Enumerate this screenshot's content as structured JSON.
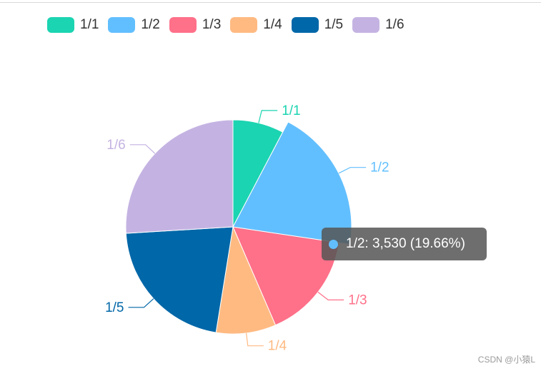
{
  "chart_data": {
    "type": "pie",
    "categories": [
      "1/1",
      "1/2",
      "1/3",
      "1/4",
      "1/5",
      "1/6"
    ],
    "values": [
      1380,
      3530,
      2900,
      1620,
      3860,
      4660
    ],
    "colors": [
      "#1bd4b1",
      "#62bfff",
      "#ff7089",
      "#ffba82",
      "#0067a8",
      "#c4b3e2"
    ],
    "legend_position": "top-left"
  },
  "tooltip": {
    "text": "1/2: 3,530 (19.66%)",
    "color": "#62bfff"
  },
  "watermark": "CSDN @小猿L"
}
